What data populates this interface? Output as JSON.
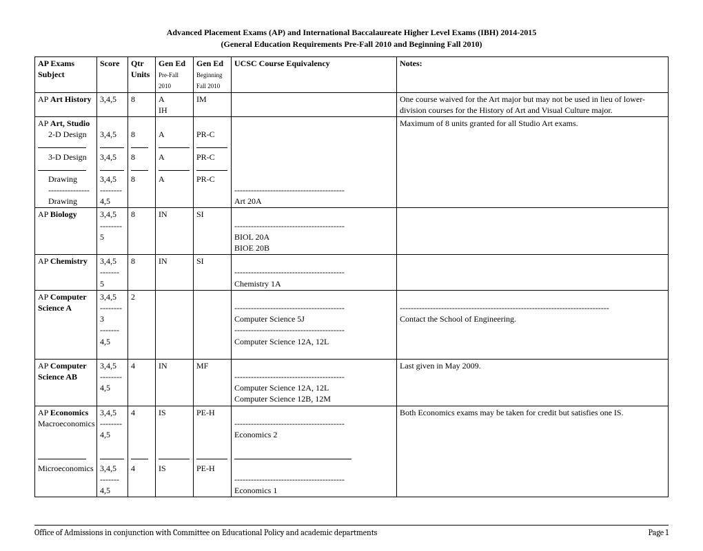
{
  "title": "Advanced Placement Exams (AP) and International Baccalaureate Higher Level Exams (IBH) 2014-2015",
  "subtitle": "(General Education Requirements Pre-Fall 2010 and Beginning Fall 2010)",
  "headers": {
    "subject_l1": "AP Exams",
    "subject_l2": "Subject",
    "score": "Score",
    "units_l1": "Qtr",
    "units_l2": "Units",
    "gened1_l1": "Gen Ed",
    "gened1_l2": "Pre-Fall 2010",
    "gened2_l1": "Gen Ed",
    "gened2_l2": "Beginning Fall 2010",
    "equiv": "UCSC Course Equivalency",
    "notes": "Notes:"
  },
  "rows": {
    "art_history": {
      "prefix": "AP ",
      "bold": "Art History",
      "score": "3,4,5",
      "units": "8",
      "gened1_l1": "A",
      "gened1_l2": "IH",
      "gened2": "IM",
      "notes": "One course waived for the Art major but may not be used in lieu of lower-division courses for the History of Art and Visual Culture major."
    },
    "art_studio": {
      "prefix": "AP ",
      "bold": "Art, Studio",
      "sub_2d": "2-D Design",
      "sub_3d": "3-D Design",
      "sub_draw": "Drawing",
      "score_345": "3,4,5",
      "score_45": "4,5",
      "units": "8",
      "gened1": "A",
      "gened2": "PR-C",
      "equiv_art20a": "Art 20A",
      "notes": "Maximum of 8 units granted for all Studio Art exams."
    },
    "biology": {
      "prefix": "AP ",
      "bold": "Biology",
      "score_345": "3,4,5",
      "score_5": "5",
      "units": "8",
      "gened1": "IN",
      "gened2": "SI",
      "equiv_l1": "BIOL 20A",
      "equiv_l2": "BIOE 20B"
    },
    "chemistry": {
      "prefix": "AP ",
      "bold": "Chemistry",
      "score_345": "3,4,5",
      "score_5": "5",
      "units": "8",
      "gened1": "IN",
      "gened2": "SI",
      "equiv": "Chemistry 1A"
    },
    "cs_a": {
      "prefix": "AP ",
      "bold_l1": "Computer",
      "bold_l2": "Science A",
      "score_345": "3,4,5",
      "score_3": "3",
      "score_45": "4,5",
      "units": "2",
      "equiv_3": "Computer Science 5J",
      "equiv_45": "Computer Science 12A, 12L",
      "notes": "Contact the School of Engineering."
    },
    "cs_ab": {
      "prefix": "AP ",
      "bold_l1": "Computer",
      "bold_l2": "Science AB",
      "score_345": "3,4,5",
      "score_45": "4,5",
      "units": "4",
      "gened1": "IN",
      "gened2": "MF",
      "equiv_l1": "Computer Science 12A, 12L",
      "equiv_l2": "Computer Science 12B, 12M",
      "notes": "Last given in May 2009."
    },
    "economics": {
      "prefix": "AP ",
      "bold": "Economics",
      "sub_macro": "Macroeconomics",
      "sub_micro": "Microeconomics",
      "score_345": "3,4,5",
      "score_45": "4,5",
      "units": "4",
      "gened1": "IS",
      "gened2": "PE-H",
      "equiv_macro": "Economics 2",
      "equiv_micro": "Economics 1",
      "notes": "Both Economics exams may be taken for credit but satisfies one IS."
    }
  },
  "footer_left": "Office of Admissions in conjunction with Committee on Educational Policy and academic departments",
  "footer_right": "Page 1"
}
